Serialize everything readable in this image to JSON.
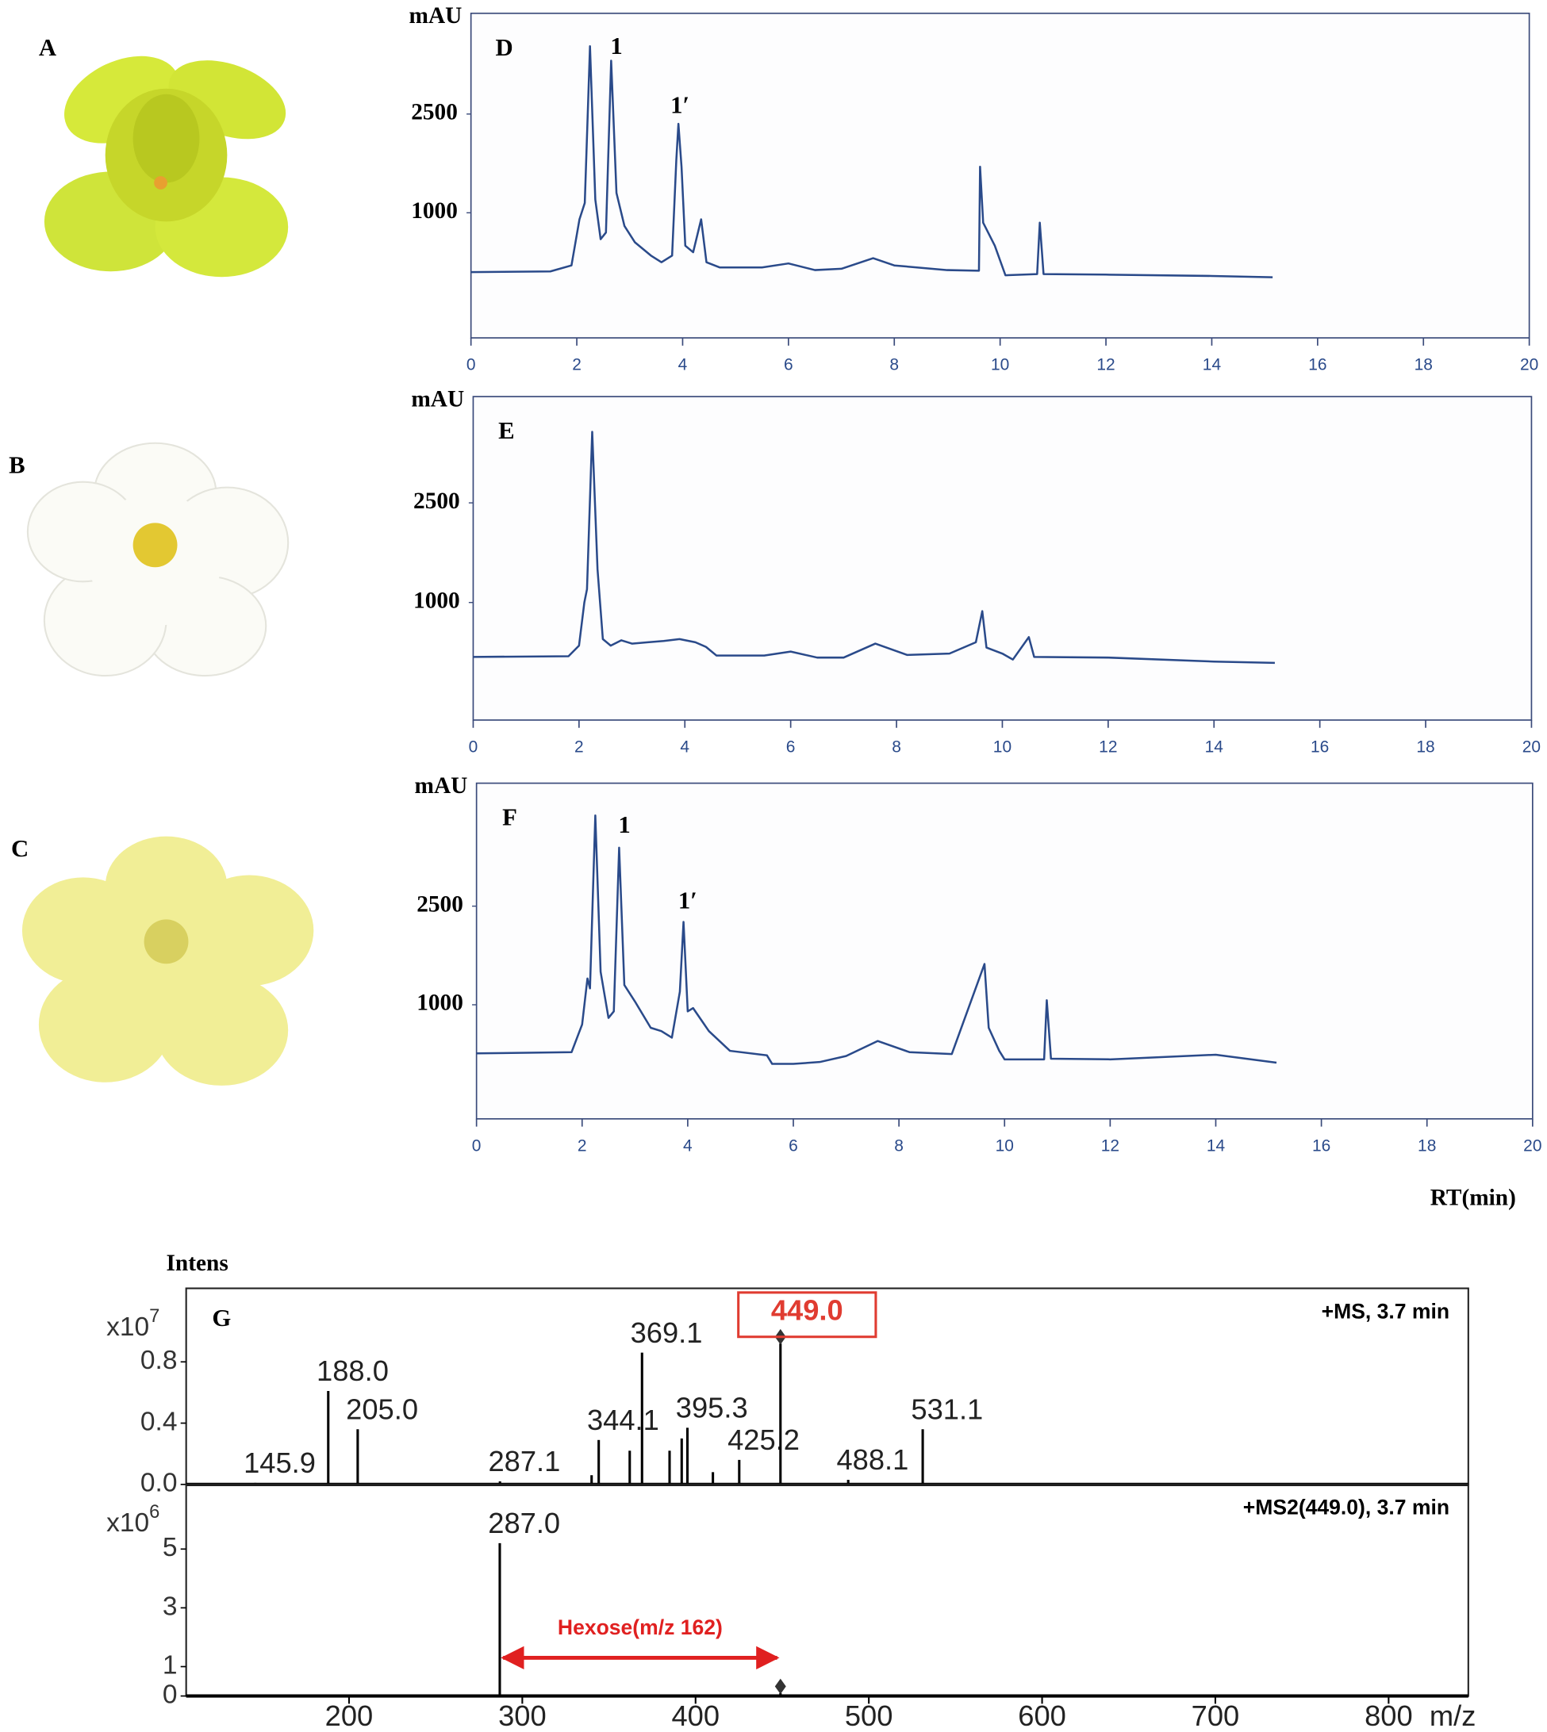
{
  "flower_panels": {
    "labels": [
      "A",
      "B",
      "C"
    ]
  },
  "chart_data": [
    {
      "type": "line",
      "panel": "D",
      "y_label": "mAU",
      "xlim": [
        0,
        20
      ],
      "ylim": [
        -900,
        4030
      ],
      "xticks": [
        0,
        2,
        4,
        6,
        8,
        10,
        12,
        14,
        16,
        18,
        20
      ],
      "yticks": [
        1000,
        2500
      ],
      "series": [
        {
          "color": "#2a4a8a",
          "x": [
            0,
            1.5,
            1.9,
            2.05,
            2.15,
            2.25,
            2.35,
            2.45,
            2.55,
            2.65,
            2.75,
            2.9,
            3.1,
            3.4,
            3.6,
            3.8,
            3.88,
            3.92,
            3.98,
            4.05,
            4.2,
            4.35,
            4.45,
            4.7,
            5.5,
            6.0,
            6.5,
            7.0,
            7.6,
            8.0,
            9.0,
            9.6,
            9.62,
            9.68,
            9.9,
            10.1,
            10.7,
            10.75,
            10.82,
            12,
            14,
            15.15
          ],
          "values": [
            100,
            110,
            200,
            900,
            1150,
            3530,
            1200,
            600,
            700,
            3310,
            1300,
            800,
            550,
            350,
            250,
            350,
            1800,
            2350,
            1700,
            500,
            400,
            900,
            250,
            170,
            170,
            230,
            130,
            150,
            310,
            200,
            130,
            120,
            1700,
            850,
            500,
            50,
            70,
            850,
            70,
            60,
            40,
            20
          ]
        }
      ],
      "annotations": [
        {
          "text": "1",
          "x": 2.75,
          "y": 3500
        },
        {
          "text": "1′",
          "x": 3.95,
          "y": 2600
        }
      ]
    },
    {
      "type": "line",
      "panel": "E",
      "y_label": "mAU",
      "xlim": [
        0,
        20
      ],
      "ylim": [
        -770,
        4100
      ],
      "xticks": [
        0,
        2,
        4,
        6,
        8,
        10,
        12,
        14,
        16,
        18,
        20
      ],
      "yticks": [
        1000,
        2500
      ],
      "series": [
        {
          "color": "#2a4a8a",
          "x": [
            0,
            1.8,
            2.0,
            2.1,
            2.15,
            2.25,
            2.35,
            2.45,
            2.6,
            2.8,
            3.0,
            3.3,
            3.6,
            3.9,
            4.2,
            4.4,
            4.6,
            5.5,
            6.0,
            6.5,
            7.0,
            7.6,
            8.2,
            9.0,
            9.5,
            9.62,
            9.7,
            10.0,
            10.2,
            10.5,
            10.6,
            12,
            14,
            15.15
          ],
          "values": [
            180,
            190,
            350,
            1000,
            1200,
            3570,
            1500,
            450,
            350,
            430,
            380,
            400,
            420,
            450,
            400,
            330,
            200,
            200,
            260,
            170,
            170,
            380,
            210,
            230,
            400,
            870,
            320,
            230,
            140,
            480,
            180,
            170,
            110,
            90
          ]
        }
      ]
    },
    {
      "type": "line",
      "panel": "F",
      "y_label": "mAU",
      "x_label": "RT(min)",
      "xlim": [
        0,
        20
      ],
      "ylim": [
        -735,
        4370
      ],
      "xticks": [
        0,
        2,
        4,
        6,
        8,
        10,
        12,
        14,
        16,
        18,
        20
      ],
      "yticks": [
        1000,
        2500
      ],
      "series": [
        {
          "color": "#2a4a8a",
          "x": [
            0,
            1.8,
            2.0,
            2.1,
            2.15,
            2.25,
            2.35,
            2.5,
            2.6,
            2.7,
            2.8,
            3.0,
            3.3,
            3.5,
            3.7,
            3.85,
            3.92,
            4.0,
            4.1,
            4.4,
            4.8,
            5.5,
            5.6,
            6.0,
            6.5,
            7.0,
            7.6,
            8.2,
            9.0,
            9.62,
            9.7,
            9.9,
            10.0,
            10.75,
            10.8,
            10.88,
            12,
            14,
            15.15
          ],
          "values": [
            260,
            280,
            700,
            1400,
            1250,
            3880,
            1500,
            800,
            900,
            3390,
            1300,
            1050,
            650,
            600,
            500,
            1200,
            2260,
            900,
            950,
            600,
            300,
            230,
            100,
            100,
            130,
            220,
            450,
            280,
            250,
            1620,
            650,
            300,
            170,
            170,
            1070,
            180,
            170,
            240,
            120
          ]
        }
      ],
      "annotations": [
        {
          "text": "1",
          "x": 2.8,
          "y": 3700
        },
        {
          "text": "1′",
          "x": 4.0,
          "y": 2550
        }
      ]
    },
    {
      "type": "bar",
      "panel": "G",
      "y_label": "Intens",
      "y_multiplier_base": "x10",
      "y_multiplier_exponent": "7",
      "spectrum_label": "+MS, 3.7 min",
      "xlim": [
        106,
        846
      ],
      "ylim": [
        0,
        1.28
      ],
      "yticks": [
        {
          "value": 0,
          "label": "0.0"
        },
        {
          "value": 0.4,
          "label": "0.4"
        },
        {
          "value": 0.8,
          "label": "0.8"
        }
      ],
      "highlight_x": 449.0,
      "highlight_color": "#e03c31",
      "series": [
        {
          "color": "#000000",
          "x": [
            145.9,
            188.0,
            205.0,
            287.1,
            340.0,
            344.1,
            362.0,
            369.1,
            385.0,
            392.0,
            395.3,
            410.0,
            425.2,
            449.0,
            488.1,
            531.1
          ],
          "values": [
            0.01,
            0.61,
            0.36,
            0.02,
            0.06,
            0.29,
            0.22,
            0.86,
            0.22,
            0.3,
            0.37,
            0.08,
            0.16,
            0.92,
            0.03,
            0.36
          ],
          "x_labels": [
            "145.9",
            "188.0",
            "205.0",
            "287.1",
            null,
            "344.1",
            null,
            "369.1",
            null,
            null,
            "395.3",
            null,
            "425.2",
            "449.0",
            "488.1",
            "531.1"
          ]
        }
      ]
    },
    {
      "type": "bar",
      "x_label": "m/z",
      "y_multiplier_base": "x10",
      "y_multiplier_exponent": "6",
      "spectrum_label": "+MS2(449.0), 3.7 min",
      "xlim": [
        106,
        846
      ],
      "ylim": [
        0,
        7.2
      ],
      "xticks": [
        200,
        300,
        400,
        500,
        600,
        700,
        800
      ],
      "yticks": [
        0,
        1,
        3,
        5
      ],
      "highlight_x": 449.0,
      "series": [
        {
          "color": "#000000",
          "x": [
            287.0,
            449.0
          ],
          "values": [
            5.2,
            0.1
          ],
          "x_labels": [
            "287.0",
            null
          ]
        }
      ],
      "annotations": [
        {
          "text": "Hexose(m/z 162)",
          "x_from": 287.0,
          "x_to": 449.0,
          "y": 1.3,
          "color": "#e02020"
        }
      ]
    }
  ]
}
